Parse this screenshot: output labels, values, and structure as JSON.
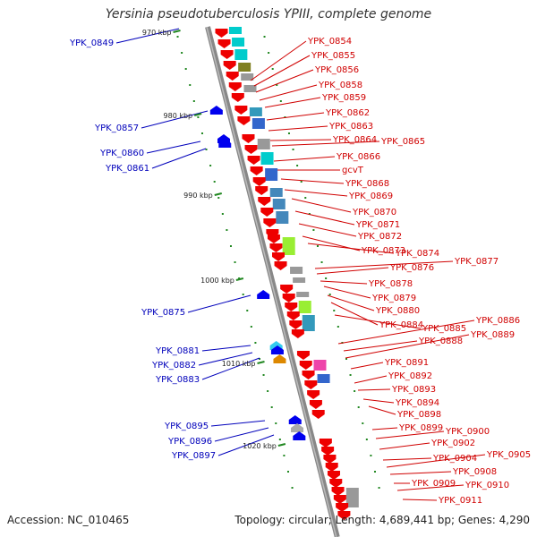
{
  "title": "Yersinia pseudotuberculosis YPIII, complete genome",
  "footer": {
    "accession": "Accession: NC_010465",
    "summary": "Topology: circular; Length: 4,689,441 bp; Genes: 4,290"
  },
  "colors": {
    "forward": "#ee0000",
    "reverse": "#0000ee",
    "backbone": "#888888",
    "tick": "#228822",
    "label_right": "#d00000",
    "label_left": "#0000bb"
  },
  "ticks": [
    "970 kbp",
    "980 kbp",
    "990 kbp",
    "1000 kbp",
    "1010 kbp",
    "1020 kbp"
  ],
  "labels_right": [
    "YPK_0854",
    "YPK_0855",
    "YPK_0856",
    "YPK_0858",
    "YPK_0859",
    "YPK_0862",
    "YPK_0863",
    "YPK_0864",
    "YPK_0865",
    "YPK_0866",
    "gcvT",
    "YPK_0868",
    "YPK_0869",
    "YPK_0870",
    "YPK_0871",
    "YPK_0872",
    "YPK_0873",
    "YPK_0874",
    "YPK_0877",
    "YPK_0876",
    "YPK_0878",
    "YPK_0879",
    "YPK_0880",
    "YPK_0884",
    "YPK_0885",
    "YPK_0886",
    "YPK_0888",
    "YPK_0889",
    "YPK_0891",
    "YPK_0892",
    "YPK_0893",
    "YPK_0894",
    "YPK_0898",
    "YPK_0899",
    "YPK_0900",
    "YPK_0902",
    "YPK_0904",
    "YPK_0905",
    "YPK_0908",
    "YPK_0909",
    "YPK_0910",
    "YPK_0911"
  ],
  "labels_left": [
    "YPK_0849",
    "YPK_0857",
    "YPK_0860",
    "YPK_0861",
    "YPK_0875",
    "YPK_0881",
    "YPK_0882",
    "YPK_0883",
    "YPK_0895",
    "YPK_0896",
    "YPK_0897"
  ]
}
